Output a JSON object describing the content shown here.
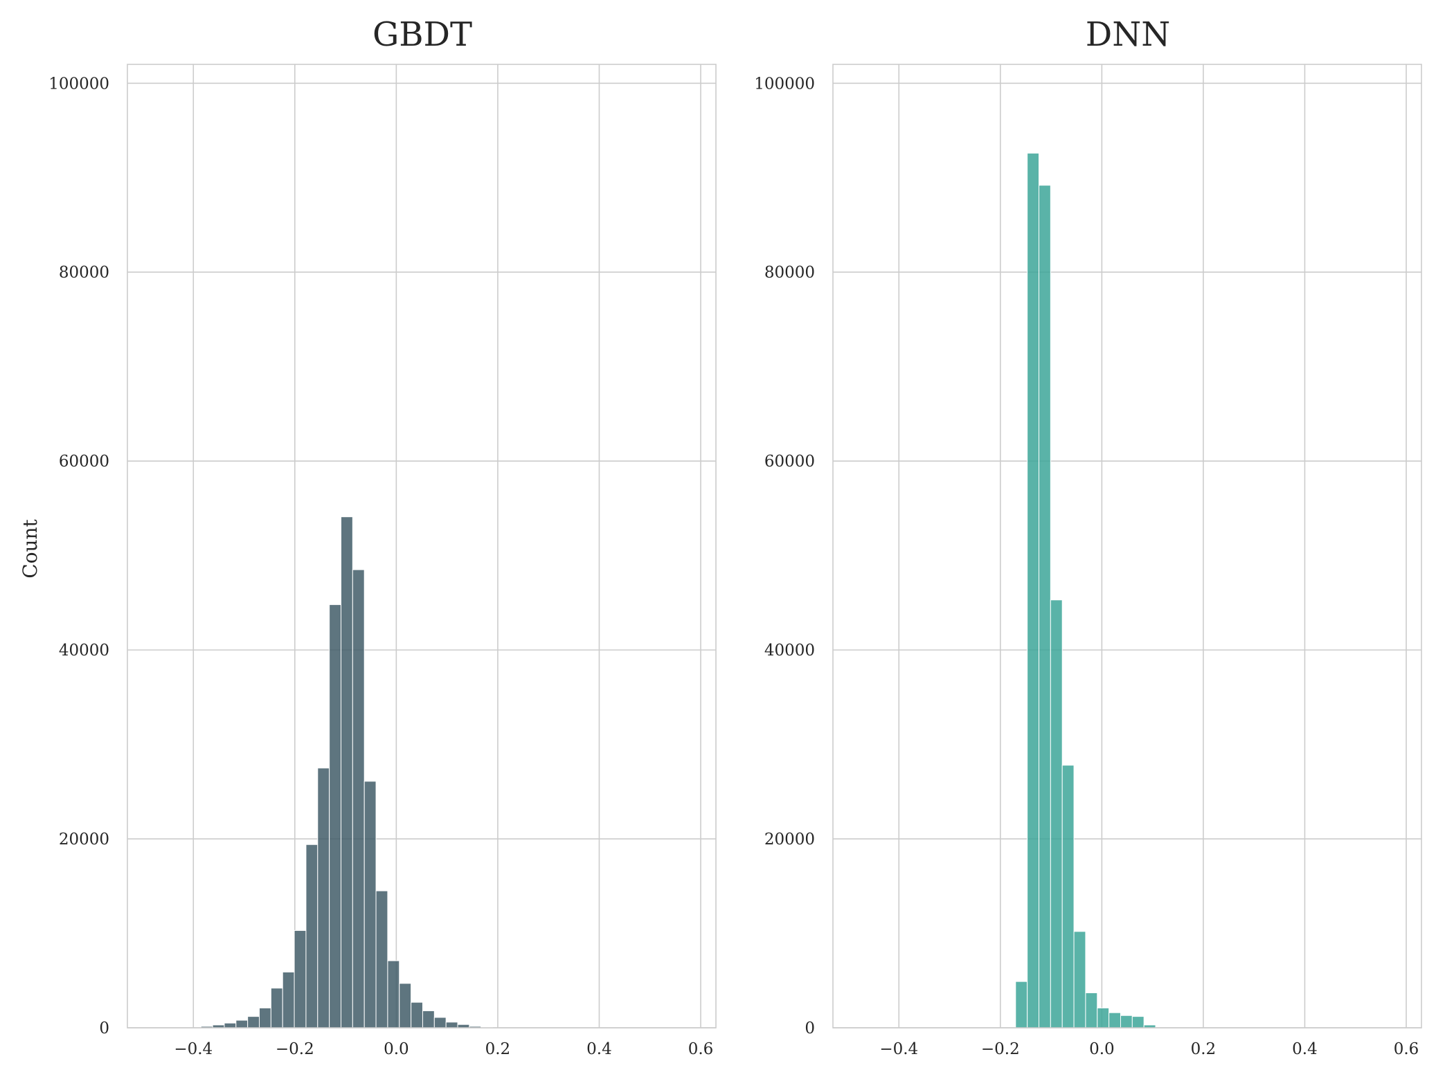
{
  "chart_data": [
    {
      "type": "bar",
      "title": "GBDT",
      "xlabel": "",
      "ylabel": "Count",
      "xlim": [
        -0.53,
        0.63
      ],
      "ylim": [
        0,
        102000
      ],
      "x_ticks": [
        -0.4,
        -0.2,
        0.0,
        0.2,
        0.4,
        0.6
      ],
      "x_tick_labels": [
        "−0.4",
        "−0.2",
        "0.0",
        "0.2",
        "0.4",
        "0.6"
      ],
      "y_ticks": [
        0,
        20000,
        40000,
        60000,
        80000,
        100000
      ],
      "y_tick_labels": [
        "0",
        "20000",
        "40000",
        "60000",
        "80000",
        "100000"
      ],
      "grid": true,
      "color": "#3f5a66",
      "bin_width": 0.023,
      "bin_starts": [
        -0.385,
        -0.362,
        -0.339,
        -0.316,
        -0.293,
        -0.27,
        -0.247,
        -0.224,
        -0.201,
        -0.178,
        -0.155,
        -0.132,
        -0.109,
        -0.086,
        -0.063,
        -0.04,
        -0.017,
        0.006,
        0.029,
        0.052,
        0.075,
        0.098,
        0.121,
        0.144,
        0.167
      ],
      "values": [
        150,
        300,
        500,
        800,
        1200,
        2100,
        4200,
        5900,
        10300,
        19400,
        27500,
        44800,
        54100,
        48500,
        26100,
        14500,
        7100,
        4700,
        2700,
        1800,
        1100,
        600,
        350,
        150,
        60
      ]
    },
    {
      "type": "bar",
      "title": "DNN",
      "xlabel": "",
      "ylabel": "",
      "xlim": [
        -0.53,
        0.63
      ],
      "ylim": [
        0,
        102000
      ],
      "x_ticks": [
        -0.4,
        -0.2,
        0.0,
        0.2,
        0.4,
        0.6
      ],
      "x_tick_labels": [
        "−0.4",
        "−0.2",
        "0.0",
        "0.2",
        "0.4",
        "0.6"
      ],
      "y_ticks": [
        0,
        20000,
        40000,
        60000,
        80000,
        100000
      ],
      "y_tick_labels": [
        "0",
        "20000",
        "40000",
        "60000",
        "80000",
        "100000"
      ],
      "grid": true,
      "color": "#3aa597",
      "bin_width": 0.023,
      "bin_starts": [
        -0.17,
        -0.147,
        -0.124,
        -0.101,
        -0.078,
        -0.055,
        -0.032,
        -0.009,
        0.014,
        0.037,
        0.06,
        0.083
      ],
      "values": [
        4900,
        92600,
        89200,
        45300,
        27800,
        10200,
        3700,
        2100,
        1600,
        1300,
        1200,
        300
      ]
    }
  ]
}
